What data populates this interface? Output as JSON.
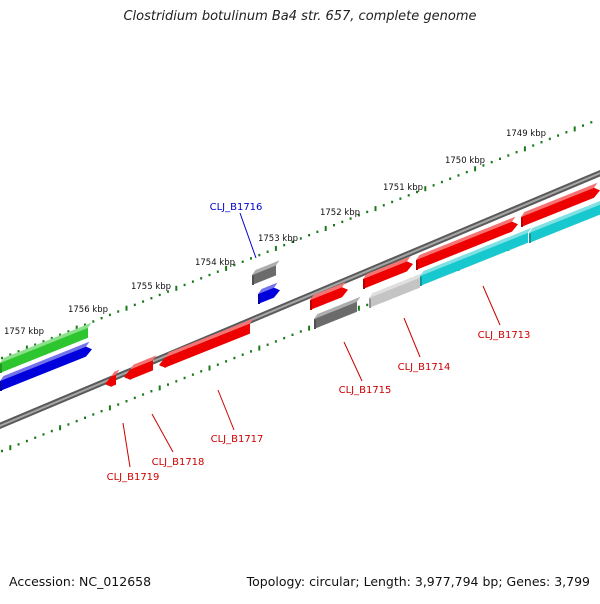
{
  "title": "Clostridium botulinum Ba4 str. 657, complete genome",
  "footer": {
    "accession": "Accession: NC_012658",
    "topology": "Topology: circular; Length: 3,977,794 bp; Genes: 3,799"
  },
  "colors": {
    "backbone": "#8a8a8a",
    "tick": "#1a7a1a",
    "red": "#ee0000",
    "blue": "#0000dd",
    "green": "#2ec62e",
    "cyan": "#18c8cf",
    "gray": "#6b6b6b",
    "lightgray": "#c4c4c4",
    "label_red": "#cc0000",
    "label_blue": "#0000cc"
  },
  "scale_labels": [
    "1749 kbp",
    "1750 kbp",
    "1751 kbp",
    "1752 kbp",
    "1753 kbp",
    "1754 kbp",
    "1755 kbp",
    "1756 kbp",
    "1757 kbp"
  ],
  "gene_labels": [
    {
      "text": "CLJ_B1716",
      "color": "blue"
    },
    {
      "text": "CLJ_B1713",
      "color": "red"
    },
    {
      "text": "CLJ_B1714",
      "color": "red"
    },
    {
      "text": "CLJ_B1715",
      "color": "red"
    },
    {
      "text": "CLJ_B1717",
      "color": "red"
    },
    {
      "text": "CLJ_B1718",
      "color": "red"
    },
    {
      "text": "CLJ_B1719",
      "color": "red"
    }
  ]
}
